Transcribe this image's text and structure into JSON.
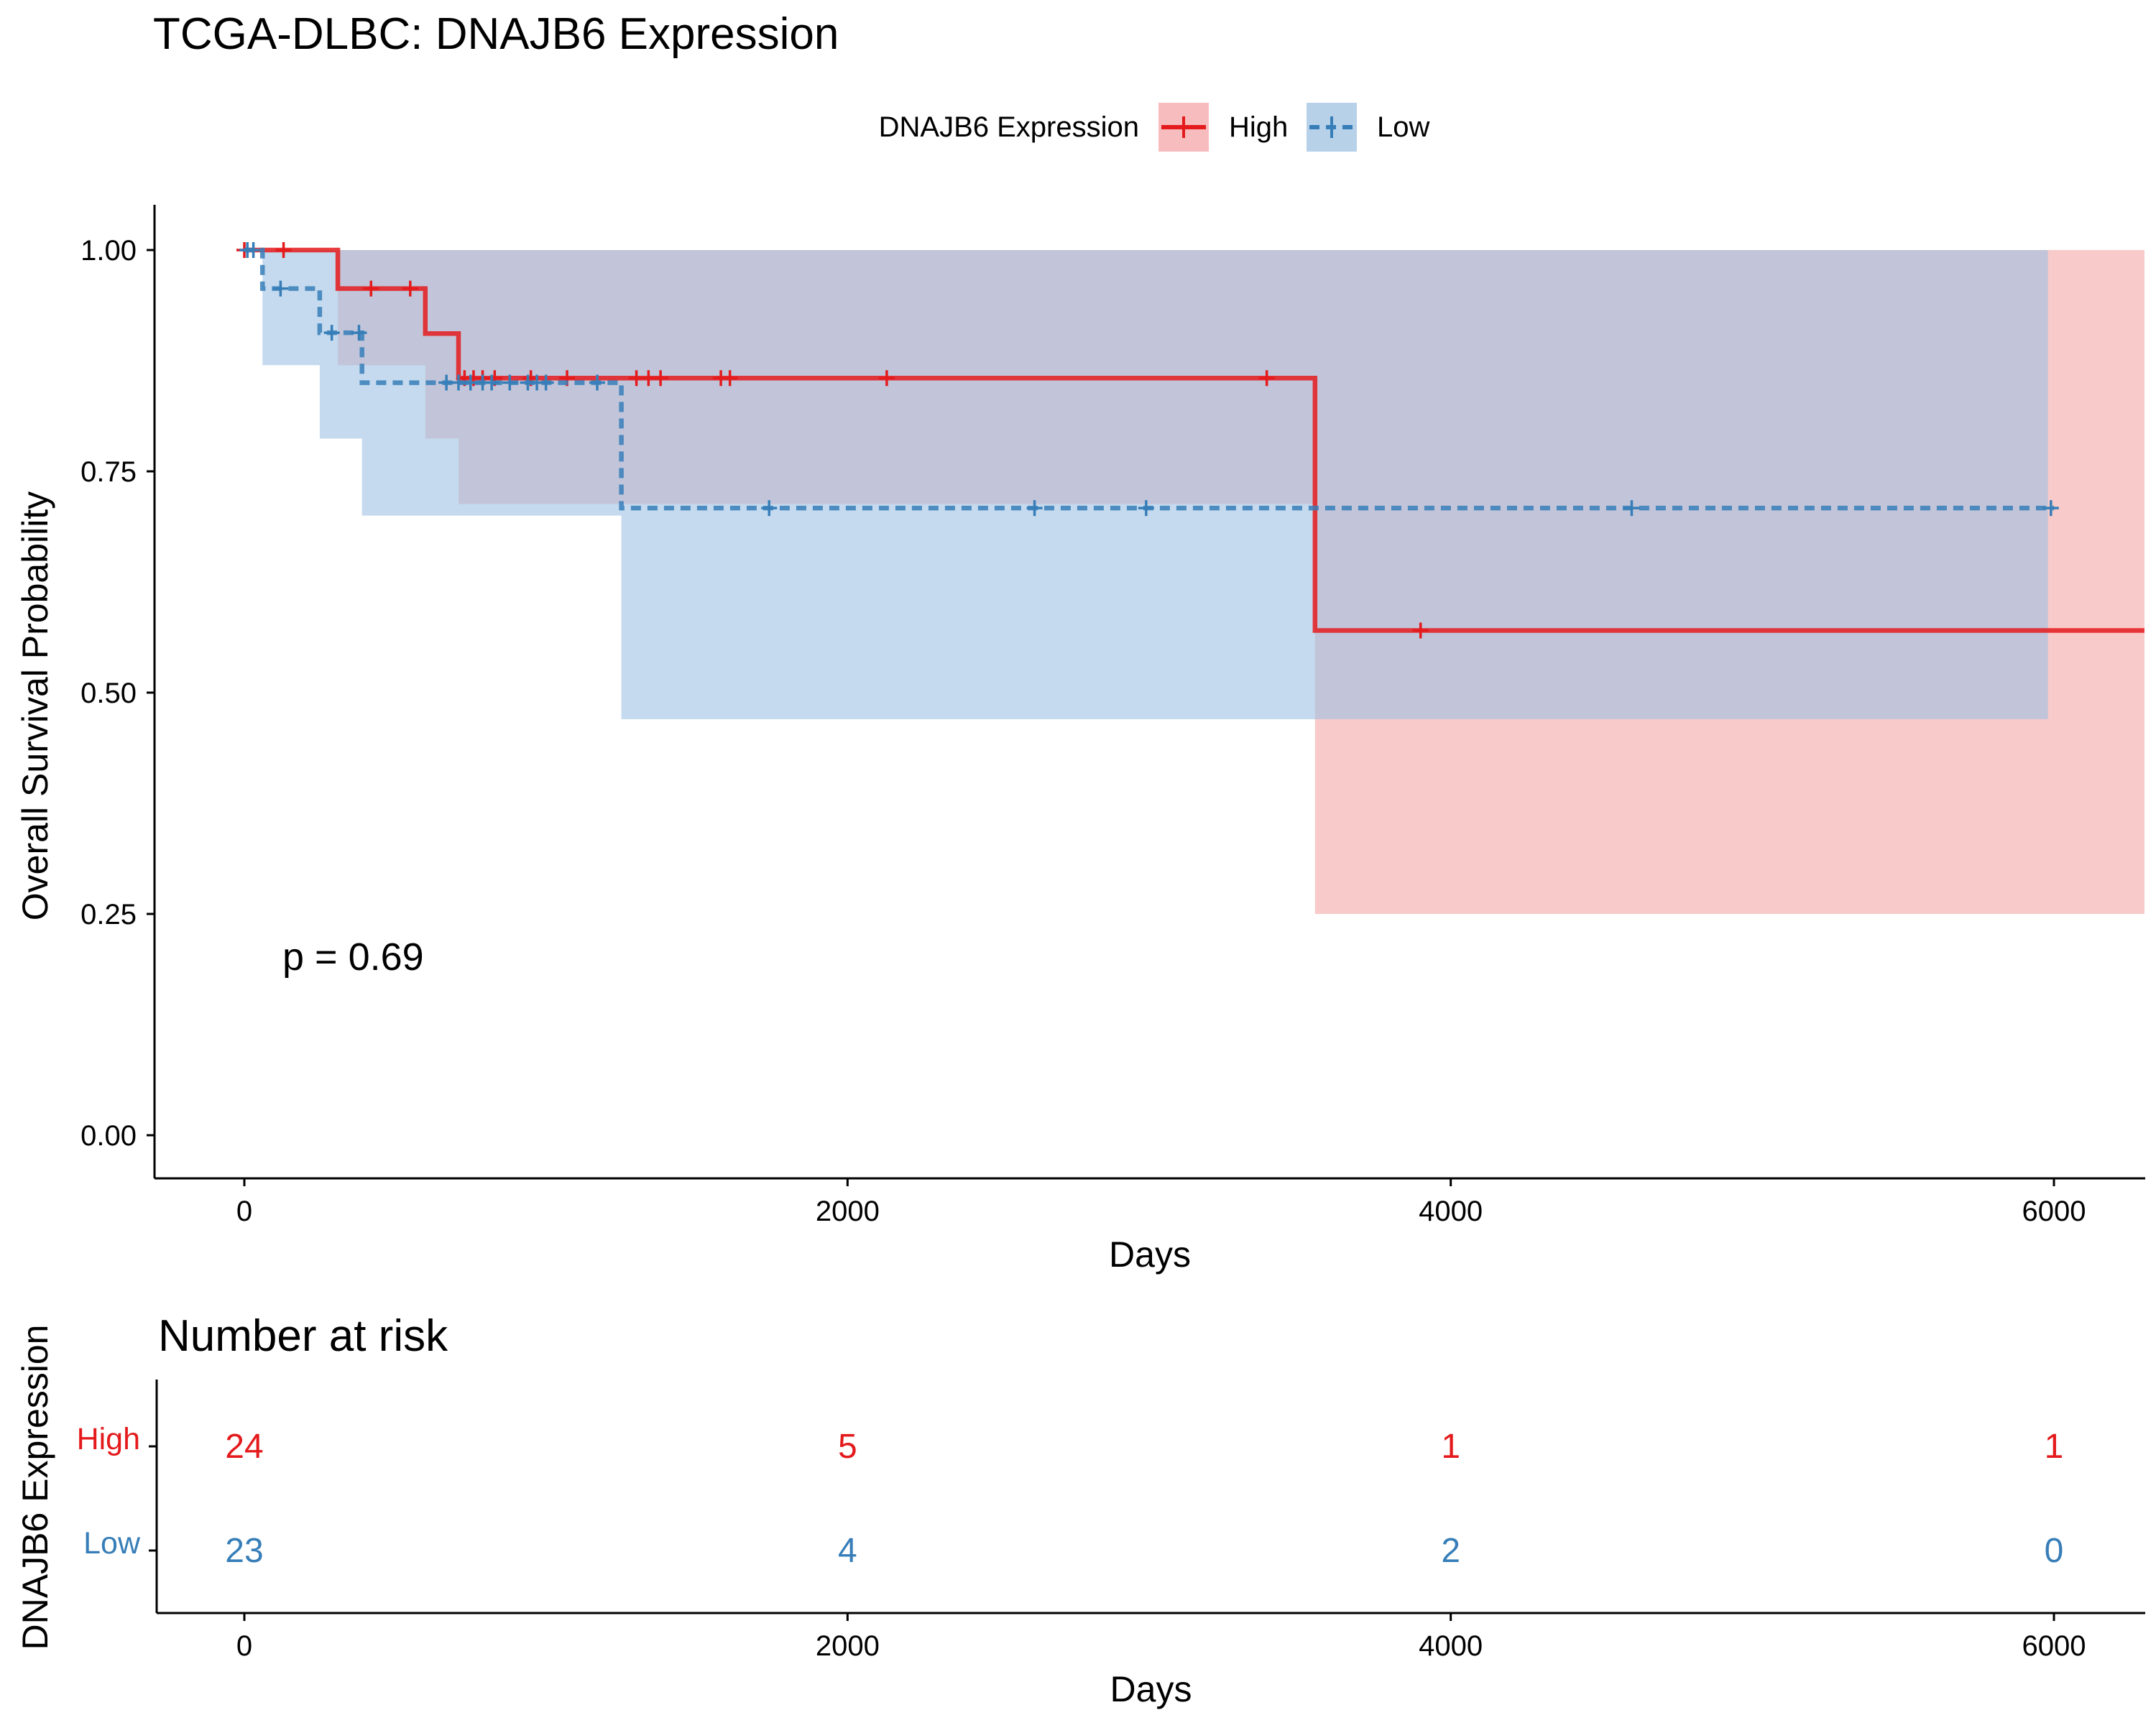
{
  "chart_data": [
    {
      "type": "line",
      "subtype": "kaplan-meier",
      "title": "TCGA-DLBC: DNAJB6 Expression",
      "xlabel": "Days",
      "ylabel": "Overall Survival Probability",
      "xlim": [
        -300,
        6300
      ],
      "ylim": [
        -0.05,
        1.05
      ],
      "xticks": [
        0,
        2000,
        4000,
        6000
      ],
      "yticks": [
        0.0,
        0.25,
        0.5,
        0.75,
        1.0
      ],
      "ytick_labels": [
        "0.00",
        "0.25",
        "0.50",
        "0.75",
        "1.00"
      ],
      "grid": false,
      "legend": {
        "title": "DNAJB6 Expression",
        "position": "top"
      },
      "annotation": "p = 0.69",
      "annotation_pos": {
        "x": 120,
        "y": 0.2
      },
      "series": [
        {
          "name": "High",
          "color": "#e41a1c",
          "fill_color": "#f4a6a7",
          "line_style": "solid",
          "steps": [
            [
              0,
              1.0
            ],
            [
              310,
              0.9565
            ],
            [
              600,
              0.9056
            ],
            [
              710,
              0.8553
            ],
            [
              3550,
              0.5702
            ],
            [
              6300,
              0.5702
            ]
          ],
          "censor": [
            [
              0,
              1.0
            ],
            [
              130,
              1.0
            ],
            [
              420,
              0.9565
            ],
            [
              550,
              0.9565
            ],
            [
              730,
              0.8553
            ],
            [
              760,
              0.8553
            ],
            [
              790,
              0.8553
            ],
            [
              830,
              0.8553
            ],
            [
              950,
              0.8553
            ],
            [
              1070,
              0.8553
            ],
            [
              1300,
              0.8553
            ],
            [
              1340,
              0.8553
            ],
            [
              1380,
              0.8553
            ],
            [
              1580,
              0.8553
            ],
            [
              1610,
              0.8553
            ],
            [
              2130,
              0.8553
            ],
            [
              3390,
              0.8553
            ],
            [
              3900,
              0.5702
            ]
          ],
          "ci": [
            [
              0,
              1.0,
              1.0
            ],
            [
              310,
              0.87,
              1.0
            ],
            [
              600,
              0.787,
              1.0
            ],
            [
              710,
              0.713,
              1.0
            ],
            [
              3550,
              0.25,
              1.0
            ],
            [
              6300,
              0.25,
              1.0
            ]
          ]
        },
        {
          "name": "Low",
          "color": "#377eb8",
          "fill_color": "#9fc2e2",
          "line_style": "dashed",
          "steps": [
            [
              0,
              1.0
            ],
            [
              60,
              0.9565
            ],
            [
              250,
              0.9066
            ],
            [
              390,
              0.8502
            ],
            [
              1250,
              0.7085
            ],
            [
              6000,
              0.7085
            ]
          ],
          "censor": [
            [
              10,
              1.0
            ],
            [
              30,
              1.0
            ],
            [
              120,
              0.9565
            ],
            [
              290,
              0.9066
            ],
            [
              380,
              0.9066
            ],
            [
              670,
              0.8502
            ],
            [
              710,
              0.8502
            ],
            [
              750,
              0.8502
            ],
            [
              790,
              0.8502
            ],
            [
              820,
              0.8502
            ],
            [
              880,
              0.8502
            ],
            [
              940,
              0.8502
            ],
            [
              970,
              0.8502
            ],
            [
              1000,
              0.8502
            ],
            [
              1170,
              0.8502
            ],
            [
              1740,
              0.7085
            ],
            [
              2620,
              0.7085
            ],
            [
              2990,
              0.7085
            ],
            [
              4600,
              0.7085
            ],
            [
              5990,
              0.7085
            ]
          ],
          "ci": [
            [
              0,
              1.0,
              1.0
            ],
            [
              60,
              0.87,
              1.0
            ],
            [
              250,
              0.787,
              1.0
            ],
            [
              390,
              0.7,
              1.0
            ],
            [
              1250,
              0.47,
              1.0
            ],
            [
              5980,
              0.47,
              1.0
            ]
          ]
        }
      ]
    },
    {
      "type": "table",
      "title": "Number at risk",
      "xlabel": "Days",
      "ylabel": "DNAJB6 Expression",
      "xlim": [
        -300,
        6300
      ],
      "xticks": [
        0,
        2000,
        4000,
        6000
      ],
      "columns": [
        0,
        2000,
        4000,
        6000
      ],
      "rows": [
        {
          "name": "High",
          "color": "#e41a1c",
          "values": [
            "24",
            "5",
            "1",
            "1"
          ]
        },
        {
          "name": "Low",
          "color": "#377eb8",
          "values": [
            "23",
            "4",
            "2",
            "0"
          ]
        }
      ]
    }
  ]
}
